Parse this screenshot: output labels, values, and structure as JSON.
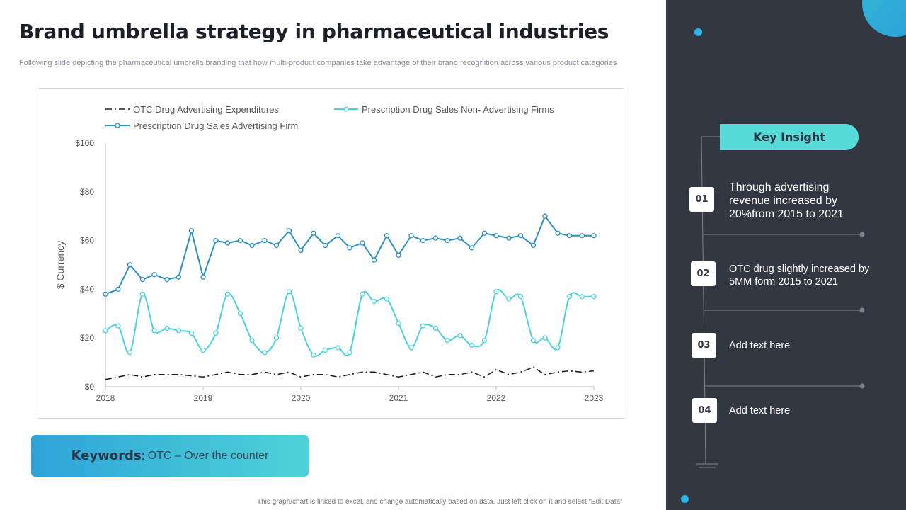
{
  "slide": {
    "title": "Brand umbrella strategy in pharmaceutical industries",
    "subtitle": "Following slide depicting the pharmaceutical umbrella branding that how multi-product companies take advantage of their brand recognition across various product categories",
    "keywords_label": "Keywords",
    "keywords_colon": ":",
    "keywords_value": "OTC – Over the counter",
    "footnote": "This graph/chart is linked to excel, and change automatically based on data. Just left click on it and select “Edit Data”"
  },
  "sidebar": {
    "key_insight_label": "Key Insight",
    "insights": [
      {
        "number": "01",
        "text": "Through advertising revenue increased by 20%from 2015 to 2021"
      },
      {
        "number": "02",
        "text": "OTC drug slightly increased by 5MM form 2015 to 2021"
      },
      {
        "number": "03",
        "text": "Add text here"
      },
      {
        "number": "04",
        "text": "Add text here"
      }
    ],
    "accent_color": "#56dbd8",
    "background_color": "#323742"
  },
  "chart_data": {
    "type": "line",
    "ylabel": "$ Currency",
    "xlabel": "",
    "ylim": [
      0,
      100
    ],
    "xlim": [
      2018,
      2023
    ],
    "y_ticks": [
      "$0",
      "$20",
      "$40",
      "$60",
      "$80",
      "$100"
    ],
    "y_tick_values": [
      0,
      20,
      40,
      60,
      80,
      100
    ],
    "x_ticks": [
      "2018",
      "2019",
      "2020",
      "2021",
      "2022",
      "2023"
    ],
    "legend_position": "top",
    "grid": false,
    "x": [
      2018.0,
      2018.13,
      2018.25,
      2018.38,
      2018.5,
      2018.63,
      2018.75,
      2018.88,
      2019.0,
      2019.13,
      2019.25,
      2019.38,
      2019.5,
      2019.63,
      2019.75,
      2019.88,
      2020.0,
      2020.13,
      2020.25,
      2020.38,
      2020.5,
      2020.63,
      2020.75,
      2020.88,
      2021.0,
      2021.13,
      2021.25,
      2021.38,
      2021.5,
      2021.63,
      2021.75,
      2021.88,
      2022.0,
      2022.13,
      2022.25,
      2022.38,
      2022.5,
      2022.63,
      2022.75,
      2022.88,
      2023.0
    ],
    "series": [
      {
        "name": "OTC Drug Advertising Expenditures",
        "color": "#1b1f27",
        "style": "dashdot",
        "values": [
          3,
          4,
          5,
          4,
          5,
          5,
          5,
          4.5,
          4,
          5,
          6,
          5,
          5,
          6,
          5,
          6,
          4,
          5,
          5,
          4,
          5,
          6,
          6,
          5,
          4,
          5,
          6,
          4,
          5,
          5,
          6,
          4,
          7,
          5,
          6,
          8,
          5,
          6,
          6.5,
          6,
          6.5
        ]
      },
      {
        "name": "Prescription Drug Sales Non- Advertising Firms",
        "color": "#4dd2dc",
        "style": "smooth",
        "values": [
          23,
          25,
          14,
          38,
          23,
          24,
          23,
          22,
          15,
          22,
          38,
          30,
          19,
          14,
          20,
          39,
          24,
          13,
          15,
          16,
          14,
          38,
          35,
          36,
          26,
          16,
          25,
          24,
          19,
          21,
          17,
          19,
          39,
          36,
          37,
          19,
          20,
          16,
          37,
          37,
          37
        ]
      },
      {
        "name": "Prescription Drug Sales Advertising Firm",
        "color": "#2b8fc4",
        "style": "solid",
        "values": [
          38,
          40,
          50,
          44,
          46,
          44,
          45,
          64,
          45,
          60,
          59,
          60,
          58,
          60,
          58,
          64,
          56,
          63,
          58,
          62,
          57,
          59,
          52,
          62,
          54,
          62,
          60,
          61,
          60,
          61,
          57,
          63,
          62,
          61,
          62,
          58,
          70,
          63,
          62,
          62,
          62
        ]
      }
    ]
  }
}
